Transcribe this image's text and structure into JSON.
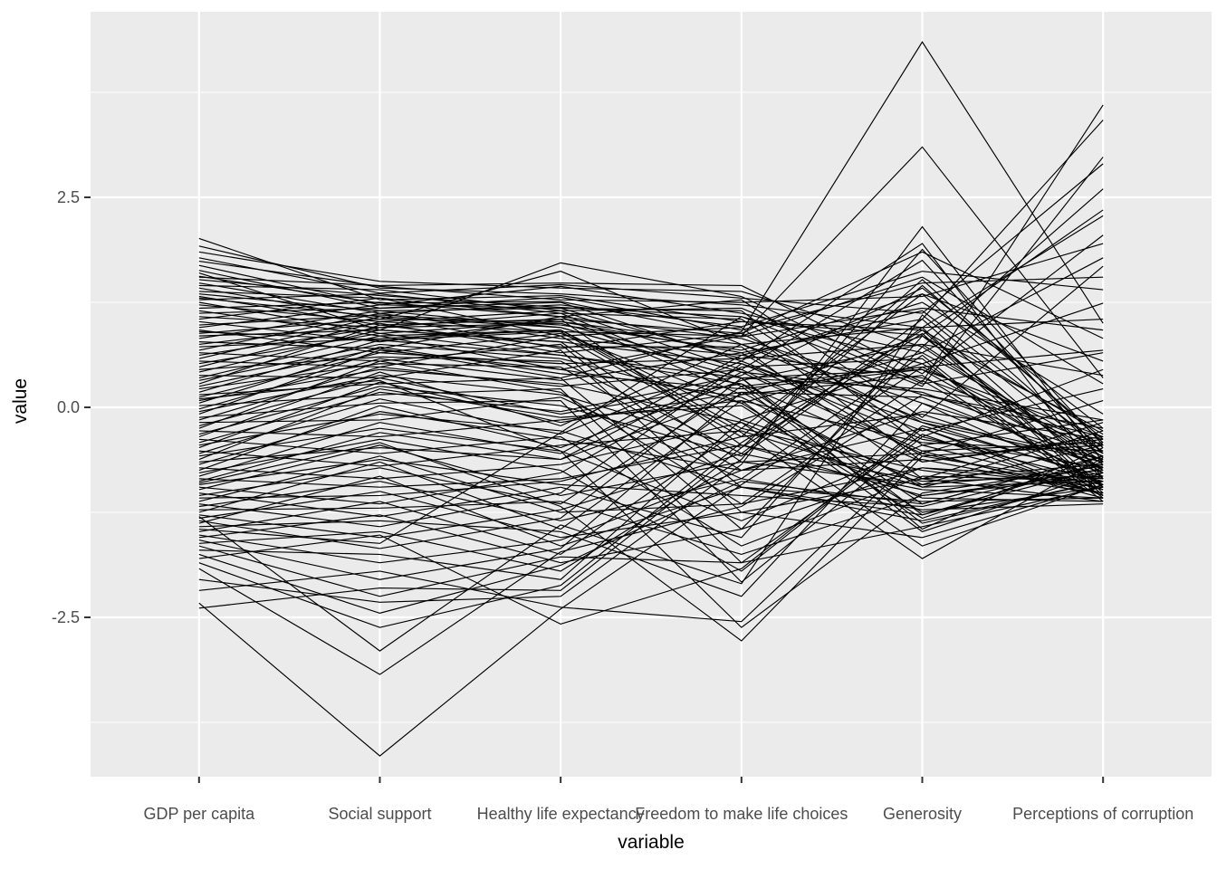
{
  "figure": {
    "background": "#ffffff",
    "panel_background": "#ebebeb",
    "gridline_color": "#ffffff",
    "line_color": "#000000",
    "tick_text_color": "#4d4d4d",
    "tick_mark_color": "#333333",
    "axis_title_color": "#000000"
  },
  "chart_data": {
    "type": "line",
    "subtype": "parallel-coordinates",
    "title": "",
    "xlabel": "variable",
    "ylabel": "value",
    "categories": [
      "GDP per capita",
      "Social support",
      "Healthy life expectancy",
      "Freedom to make life choices",
      "Generosity",
      "Perceptions of corruption"
    ],
    "y_ticks": [
      {
        "value": 2.5,
        "label": "2.5"
      },
      {
        "value": 0.0,
        "label": "0.0"
      },
      {
        "value": -2.5,
        "label": "-2.5"
      }
    ],
    "y_minor_ticks": [
      3.75,
      1.25,
      -1.25,
      -3.75
    ],
    "ylim": [
      -4.45,
      4.71
    ],
    "grid": true,
    "legend": "none",
    "series": [
      [
        1.92,
        1.42,
        1.35,
        1.22,
        0.95,
        2.28
      ],
      [
        1.85,
        1.5,
        1.42,
        1.38,
        0.72,
        2.6
      ],
      [
        1.78,
        1.36,
        1.46,
        1.3,
        1.12,
        2.9
      ],
      [
        2.01,
        1.28,
        1.33,
        1.02,
        0.86,
        2.35
      ],
      [
        1.74,
        1.44,
        1.28,
        1.25,
        1.32,
        1.95
      ],
      [
        1.69,
        1.22,
        1.44,
        1.12,
        0.65,
        1.78
      ],
      [
        1.63,
        1.18,
        1.31,
        0.92,
        1.48,
        1.55
      ],
      [
        1.6,
        0.92,
        1.72,
        1.32,
        0.3,
        3.6
      ],
      [
        1.56,
        1.24,
        1.26,
        0.84,
        1.18,
        0.92
      ],
      [
        1.52,
        1.33,
        1.19,
        1.08,
        0.52,
        1.24
      ],
      [
        1.48,
        1.12,
        1.22,
        0.96,
        1.62,
        1.4
      ],
      [
        1.45,
        1.4,
        1.15,
        1.18,
        0.28,
        0.65
      ],
      [
        1.42,
        1.05,
        1.62,
        0.75,
        0.95,
        1.05
      ],
      [
        1.38,
        1.3,
        1.08,
        1.28,
        -0.12,
        1.68
      ],
      [
        1.35,
        1.15,
        1.18,
        0.58,
        0.75,
        0.38
      ],
      [
        1.32,
        0.98,
        1.05,
        0.88,
        1.85,
        0.82
      ],
      [
        1.55,
        1.45,
        1.48,
        1.45,
        0.4,
        2.05
      ],
      [
        1.3,
        1.08,
        0.95,
        0.35,
        0.22,
        -0.15
      ],
      [
        1.28,
        1.35,
        1.12,
        1.05,
        -0.35,
        0.45
      ],
      [
        1.25,
        0.88,
        1.02,
        0.65,
        1.05,
        3.42
      ],
      [
        1.22,
        1.02,
        1.15,
        0.45,
        -0.52,
        -0.42
      ],
      [
        1.18,
        1.25,
        1.08,
        0.82,
        0.15,
        -0.25
      ],
      [
        1.15,
        0.85,
        0.92,
        -0.15,
        -0.85,
        -0.68
      ],
      [
        1.12,
        1.18,
        1.25,
        0.55,
        -0.28,
        0.22
      ],
      [
        1.08,
        0.95,
        1.12,
        0.25,
        0.48,
        -0.55
      ],
      [
        1.05,
        1.3,
        0.85,
        0.95,
        -0.65,
        -0.38
      ],
      [
        1.02,
        0.78,
        1.05,
        -0.45,
        -1.05,
        -0.82
      ],
      [
        0.98,
        1.1,
        0.98,
        0.68,
        1.35,
        0.55
      ],
      [
        0.95,
        1.22,
        1.18,
        1.15,
        -0.45,
        -0.15
      ],
      [
        0.92,
        0.65,
        0.88,
        0.05,
        -1.25,
        -0.95
      ],
      [
        0.88,
        1.05,
        1.02,
        0.75,
        0.05,
        -0.62
      ],
      [
        0.85,
        0.92,
        0.78,
        -0.65,
        -0.92,
        -0.75
      ],
      [
        0.82,
        1.15,
        0.95,
        0.35,
        -1.45,
        -0.48
      ],
      [
        0.78,
        0.7,
        1.08,
        0.15,
        0.85,
        -0.28
      ],
      [
        0.75,
        1.0,
        0.65,
        0.88,
        -0.18,
        -0.85
      ],
      [
        0.72,
        0.82,
        0.92,
        -0.25,
        -0.75,
        -1.02
      ],
      [
        0.68,
        1.12,
        0.82,
        0.62,
        0.35,
        -0.45
      ],
      [
        0.65,
        0.55,
        0.75,
        -0.95,
        -1.35,
        -0.88
      ],
      [
        0.62,
        0.95,
        1.0,
        0.42,
        -0.55,
        0.08
      ],
      [
        0.58,
        1.08,
        0.7,
        1.02,
        0.92,
        -0.32
      ],
      [
        0.55,
        0.48,
        0.85,
        -0.35,
        -0.08,
        -0.78
      ],
      [
        0.52,
        0.88,
        0.62,
        0.28,
        -1.15,
        -0.58
      ],
      [
        0.48,
        1.02,
        0.9,
        0.85,
        1.55,
        0.28
      ],
      [
        0.45,
        0.6,
        0.55,
        -0.55,
        -0.98,
        -1.08
      ],
      [
        0.42,
        0.92,
        0.78,
        0.52,
        -0.38,
        -0.72
      ],
      [
        0.38,
        0.35,
        0.68,
        -1.25,
        -1.55,
        -0.92
      ],
      [
        0.35,
        0.85,
        0.45,
        0.85,
        3.1,
        0.35
      ],
      [
        0.32,
        0.75,
        0.58,
        0.05,
        0.65,
        -0.52
      ],
      [
        0.28,
        0.98,
        0.72,
        0.72,
        -0.85,
        -0.18
      ],
      [
        0.25,
        0.7,
        0.35,
        0.9,
        4.35,
        1.0
      ],
      [
        0.22,
        0.52,
        0.48,
        -0.75,
        -0.25,
        -0.98
      ],
      [
        0.18,
        0.8,
        0.62,
        0.35,
        -1.28,
        -0.65
      ],
      [
        0.15,
        0.28,
        0.35,
        -1.45,
        -0.72,
        -0.85
      ],
      [
        0.12,
        0.65,
        0.52,
        0.58,
        1.25,
        -0.08
      ],
      [
        0.08,
        0.45,
        0.28,
        -0.18,
        -1.08,
        -1.12
      ],
      [
        0.05,
        0.72,
        0.4,
        0.22,
        0.45,
        -0.75
      ],
      [
        0.02,
        0.15,
        0.22,
        -1.85,
        -1.42,
        -0.95
      ],
      [
        -0.02,
        0.58,
        0.32,
        0.65,
        -0.58,
        -0.45
      ],
      [
        -0.05,
        0.38,
        0.15,
        -0.48,
        0.88,
        -1.05
      ],
      [
        -0.08,
        0.68,
        0.45,
        0.12,
        -0.92,
        -0.28
      ],
      [
        -0.12,
        0.05,
        0.08,
        -2.08,
        -0.35,
        -0.88
      ],
      [
        -0.15,
        0.48,
        0.25,
        0.45,
        1.75,
        -0.55
      ],
      [
        -0.18,
        -0.15,
        0.12,
        -0.85,
        -1.22,
        -1.15
      ],
      [
        -0.22,
        0.35,
        -0.08,
        0.28,
        -0.65,
        -0.35
      ],
      [
        -0.25,
        0.55,
        0.18,
        -1.15,
        0.32,
        -0.92
      ],
      [
        -0.28,
        -0.35,
        -0.15,
        0.08,
        -1.48,
        -0.78
      ],
      [
        -0.32,
        0.25,
        0.02,
        -0.58,
        0.95,
        -1.02
      ],
      [
        -0.35,
        0.42,
        -0.22,
        0.75,
        -0.15,
        -0.62
      ],
      [
        -0.38,
        -0.55,
        -0.35,
        -1.65,
        -0.82,
        -0.88
      ],
      [
        -0.42,
        0.18,
        -0.05,
        0.38,
        1.42,
        -0.25
      ],
      [
        -0.45,
        -0.08,
        -0.28,
        -0.95,
        -1.12,
        -1.08
      ],
      [
        -0.48,
        0.3,
        -0.18,
        0.18,
        0.12,
        -0.72
      ],
      [
        -0.52,
        -0.7,
        -0.45,
        -0.28,
        -0.95,
        -0.45
      ],
      [
        -0.55,
        0.1,
        -0.32,
        0.55,
        1.95,
        -0.85
      ],
      [
        -0.58,
        -0.25,
        -0.52,
        -1.35,
        -0.45,
        -0.98
      ],
      [
        -0.62,
        0.22,
        -0.12,
        0.02,
        -1.32,
        -0.58
      ],
      [
        -0.65,
        -0.48,
        -0.62,
        0.48,
        0.58,
        -1.12
      ],
      [
        -0.68,
        -0.05,
        -0.38,
        -0.75,
        -0.05,
        -0.38
      ],
      [
        -0.72,
        -0.85,
        -0.68,
        -0.18,
        -1.65,
        -0.92
      ],
      [
        -0.75,
        0.02,
        -0.48,
        0.32,
        0.75,
        -0.65
      ],
      [
        -0.78,
        -0.38,
        -0.75,
        -1.95,
        -0.25,
        -1.05
      ],
      [
        -0.82,
        -0.18,
        -0.55,
        0.62,
        1.15,
        -0.48
      ],
      [
        -0.85,
        -0.95,
        -0.85,
        -0.45,
        -0.88,
        -0.82
      ],
      [
        -0.88,
        -0.3,
        -0.62,
        0.15,
        0.38,
        -0.95
      ],
      [
        -0.92,
        -0.62,
        -0.92,
        -1.05,
        -1.18,
        -0.68
      ],
      [
        -0.95,
        -1.15,
        -0.78,
        0.42,
        0.18,
        -0.58
      ],
      [
        -0.98,
        -0.45,
        -1.05,
        -0.65,
        -0.55,
        -1.02
      ],
      [
        -1.02,
        -1.3,
        -0.95,
        -1.55,
        0.85,
        -0.75
      ],
      [
        -1.05,
        -0.72,
        -1.15,
        0.25,
        -1.38,
        -0.88
      ],
      [
        -1.08,
        -1.05,
        -0.88,
        -0.35,
        1.52,
        -0.42
      ],
      [
        -1.12,
        -0.58,
        -1.25,
        -1.15,
        -0.72,
        -0.95
      ],
      [
        -1.15,
        -1.42,
        -1.02,
        0.52,
        -0.18,
        -0.65
      ],
      [
        -1.18,
        -0.88,
        -1.35,
        -0.85,
        0.62,
        -1.08
      ],
      [
        -1.22,
        -1.2,
        -1.12,
        -1.75,
        -1.05,
        -0.78
      ],
      [
        -1.25,
        -0.65,
        -1.45,
        0.08,
        -0.42,
        -0.52
      ],
      [
        -1.28,
        -1.55,
        -1.22,
        -0.55,
        1.05,
        -0.85
      ],
      [
        -1.32,
        -1.0,
        -1.55,
        -1.25,
        -0.85,
        -1.12
      ],
      [
        -1.35,
        -1.68,
        -1.32,
        0.35,
        0.45,
        -0.35
      ],
      [
        -1.38,
        -0.82,
        -1.65,
        -0.95,
        -1.28,
        -0.72
      ],
      [
        -1.42,
        -1.35,
        -1.48,
        -2.25,
        0.05,
        -0.92
      ],
      [
        -1.45,
        -1.62,
        -0.3,
        1.08,
        0.25,
        2.98
      ],
      [
        -1.48,
        -1.12,
        -1.75,
        -0.25,
        1.35,
        -0.55
      ],
      [
        -1.52,
        -1.85,
        -1.58,
        -0.75,
        -0.62,
        -1.02
      ],
      [
        -1.55,
        -1.28,
        -1.85,
        -1.45,
        0.72,
        -0.68
      ],
      [
        -1.58,
        -2.05,
        -1.68,
        0.18,
        -0.95,
        -0.88
      ],
      [
        -1.62,
        -1.48,
        -1.95,
        -0.62,
        1.88,
        -0.45
      ],
      [
        -1.65,
        -2.25,
        -1.78,
        -1.85,
        -0.32,
        -1.05
      ],
      [
        -1.7,
        -1.75,
        -2.05,
        -0.15,
        0.52,
        -0.78
      ],
      [
        -1.75,
        -2.45,
        -1.88,
        -0.88,
        -1.15,
        -0.58
      ],
      [
        -1.8,
        -1.52,
        -2.58,
        -1.92,
        -0.22,
        -0.82
      ],
      [
        -1.85,
        -2.62,
        -2.12,
        -0.42,
        0.92,
        -0.95
      ],
      [
        -1.92,
        -3.18,
        -1.72,
        -1.18,
        0.15,
        -0.35
      ],
      [
        -2.05,
        -2.32,
        -2.25,
        -0.68,
        2.15,
        -0.65
      ],
      [
        -2.18,
        -1.95,
        -2.38,
        -2.55,
        -0.52,
        -1.08
      ],
      [
        -2.39,
        -2.15,
        -2.18,
        -0.48,
        1.45,
        -0.38
      ],
      [
        -2.33,
        -4.15,
        -2.4,
        -0.92,
        0.48,
        0.68
      ],
      [
        -0.9,
        -0.42,
        -1.18,
        -2.78,
        -0.58,
        -0.92
      ],
      [
        0.1,
        0.32,
        -0.52,
        -2.62,
        -1.02,
        -0.7
      ],
      [
        -1.3,
        -2.9,
        -1.4,
        -2.1,
        1.1,
        -0.6
      ],
      [
        0.9,
        0.8,
        0.9,
        -0.3,
        -1.8,
        -0.6
      ]
    ]
  }
}
